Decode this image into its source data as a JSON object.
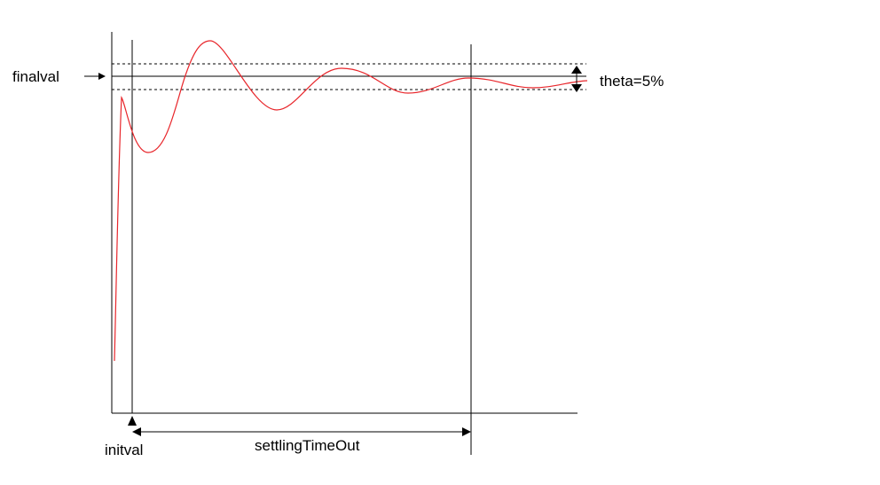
{
  "labels": {
    "finalval": "finalval",
    "theta": "theta=5%",
    "initval": "initval",
    "settling": "settlingTimeOut"
  },
  "colors": {
    "response_curve": "#e8262b",
    "lines": "#000000"
  }
}
